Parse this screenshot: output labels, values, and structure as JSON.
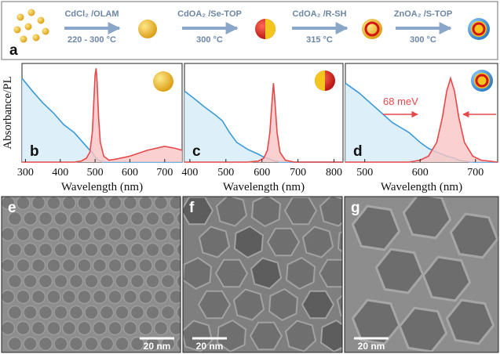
{
  "scheme": {
    "label": "a",
    "steps": [
      {
        "reagent": "CdCl₂ /OLAM",
        "temperature": "220 - 300 °C"
      },
      {
        "reagent": "CdOA₂ /Se-TOP",
        "temperature": "300 °C"
      },
      {
        "reagent": "CdOA₂ /R-SH",
        "temperature": "315 °C"
      },
      {
        "reagent": "ZnOA₂ /S-TOP",
        "temperature": "300 °C"
      }
    ]
  },
  "chart_data": [
    {
      "type": "line",
      "label": "b",
      "y_label": "Absorbance/PL",
      "x_label": "Wavelength (nm)",
      "x": [
        290,
        320,
        350,
        380,
        410,
        440,
        460,
        475,
        485,
        492,
        497,
        500,
        503,
        506,
        510,
        515,
        525,
        540,
        560,
        600,
        650,
        700,
        730,
        750
      ],
      "series": [
        {
          "color": "#3a9ad9",
          "values": [
            0.85,
            0.72,
            0.6,
            0.5,
            0.38,
            0.3,
            0.22,
            0.16,
            0.12,
            0.1,
            0.07,
            0.05,
            0.04,
            0.03,
            0.02,
            0.01,
            0,
            0,
            0,
            0,
            0,
            0,
            0,
            0
          ]
        },
        {
          "color": "#e8474a",
          "values": [
            0,
            0,
            0,
            0,
            0,
            0,
            0.01,
            0.04,
            0.1,
            0.3,
            0.65,
            0.88,
            0.95,
            0.8,
            0.45,
            0.2,
            0.06,
            0.02,
            0.03,
            0.06,
            0.12,
            0.16,
            0.14,
            0.12
          ]
        }
      ],
      "xlim": [
        290,
        750
      ],
      "xticks": [
        300,
        400,
        500,
        600,
        700
      ],
      "ylim": [
        0,
        1
      ]
    },
    {
      "type": "line",
      "label": "c",
      "x_label": "Wavelength (nm)",
      "x": [
        385,
        410,
        440,
        470,
        490,
        510,
        530,
        560,
        590,
        605,
        615,
        622,
        628,
        632,
        636,
        642,
        650,
        665,
        690,
        730,
        780,
        825
      ],
      "series": [
        {
          "color": "#3a9ad9",
          "values": [
            0.72,
            0.65,
            0.56,
            0.48,
            0.42,
            0.3,
            0.2,
            0.13,
            0.08,
            0.05,
            0.04,
            0.03,
            0.02,
            0.02,
            0.01,
            0.01,
            0,
            0,
            0,
            0,
            0,
            0
          ]
        },
        {
          "color": "#e8474a",
          "values": [
            0,
            0,
            0,
            0,
            0,
            0,
            0,
            0,
            0.01,
            0.04,
            0.12,
            0.3,
            0.62,
            0.8,
            0.62,
            0.3,
            0.1,
            0.02,
            0,
            0,
            0,
            0
          ]
        }
      ],
      "xlim": [
        385,
        825
      ],
      "xticks": [
        400,
        500,
        600,
        700,
        800
      ],
      "ylim": [
        0,
        1
      ]
    },
    {
      "type": "line",
      "label": "d",
      "x_label": "Wavelength (nm)",
      "annotation": "68 meV",
      "x": [
        465,
        490,
        520,
        550,
        580,
        600,
        615,
        630,
        640,
        648,
        655,
        662,
        670,
        680,
        695,
        710,
        740
      ],
      "series": [
        {
          "color": "#3a9ad9",
          "values": [
            0.8,
            0.7,
            0.55,
            0.4,
            0.3,
            0.2,
            0.14,
            0.1,
            0.08,
            0.06,
            0.05,
            0.04,
            0.02,
            0.01,
            0,
            0,
            0
          ]
        },
        {
          "color": "#e8474a",
          "values": [
            0,
            0,
            0,
            0,
            0,
            0.02,
            0.06,
            0.2,
            0.45,
            0.72,
            0.85,
            0.72,
            0.45,
            0.2,
            0.06,
            0.02,
            0
          ]
        }
      ],
      "xlim": [
        465,
        740
      ],
      "xticks": [
        500,
        600,
        700
      ],
      "ylim": [
        0,
        1
      ]
    }
  ],
  "images": [
    {
      "label": "e",
      "scale_bar": "20 nm"
    },
    {
      "label": "f",
      "scale_bar": "20 nm"
    },
    {
      "label": "g",
      "scale_bar": "20 nm"
    }
  ]
}
